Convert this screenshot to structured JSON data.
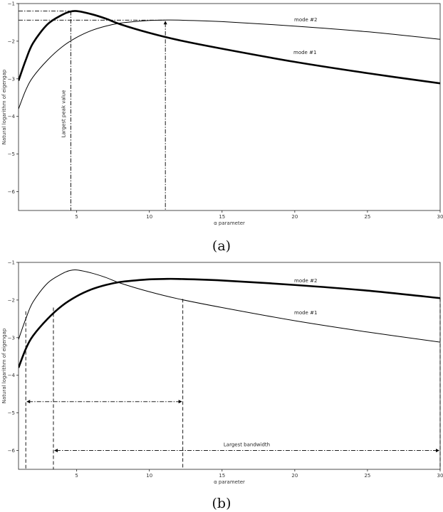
{
  "chart_data": [
    {
      "type": "line",
      "panel_caption": "(a)",
      "xlabel": "α parameter",
      "ylabel": "Natural logarithm of eigengap",
      "xlim": [
        1,
        30
      ],
      "ylim": [
        -6.5,
        -1
      ],
      "xticks": [
        5,
        10,
        15,
        20,
        25,
        30
      ],
      "yticks": [
        -1,
        -2,
        -3,
        -4,
        -5,
        -6
      ],
      "ytick_labels": [
        "−1",
        "−2",
        "−3",
        "−4",
        "−5",
        "−6"
      ],
      "grid": false,
      "series": [
        {
          "name": "mode #1",
          "weight": "thick",
          "x": [
            1,
            1.5,
            2,
            3,
            4,
            4.5,
            5,
            6,
            7,
            8,
            10,
            12,
            15,
            20,
            25,
            30
          ],
          "y": [
            -3.05,
            -2.5,
            -2.05,
            -1.55,
            -1.3,
            -1.22,
            -1.2,
            -1.28,
            -1.4,
            -1.55,
            -1.78,
            -1.97,
            -2.2,
            -2.55,
            -2.85,
            -3.12
          ]
        },
        {
          "name": "mode #2",
          "weight": "thin",
          "x": [
            1,
            1.5,
            2,
            3,
            4,
            5,
            6,
            7,
            8,
            9,
            10,
            11,
            12,
            15,
            20,
            25,
            30
          ],
          "y": [
            -3.8,
            -3.3,
            -2.95,
            -2.5,
            -2.15,
            -1.9,
            -1.72,
            -1.6,
            -1.52,
            -1.48,
            -1.45,
            -1.44,
            -1.44,
            -1.48,
            -1.6,
            -1.75,
            -1.95
          ]
        }
      ],
      "annotations": [
        {
          "kind": "vline",
          "x": 4.6,
          "y_top": -1.2,
          "style": "dashdot",
          "text": "Largest peak value"
        },
        {
          "kind": "hline",
          "y": -1.2,
          "x_from": 1,
          "x_to": 4.6,
          "style": "dashdot"
        },
        {
          "kind": "vline",
          "x": 11.1,
          "y_top": -1.44,
          "style": "dashdot",
          "arrow": true
        },
        {
          "kind": "hline",
          "y": -1.44,
          "x_from": 1,
          "x_to": 11.1,
          "style": "dashdot"
        }
      ]
    },
    {
      "type": "line",
      "panel_caption": "(b)",
      "xlabel": "α parameter",
      "ylabel": "Natural logarithm of eigengap",
      "xlim": [
        1,
        30
      ],
      "ylim": [
        -6.5,
        -1
      ],
      "xticks": [
        5,
        10,
        15,
        20,
        25,
        30
      ],
      "yticks": [
        -1,
        -2,
        -3,
        -4,
        -5,
        -6
      ],
      "ytick_labels": [
        "−1",
        "−2",
        "−3",
        "−4",
        "−5",
        "−6"
      ],
      "grid": false,
      "series": [
        {
          "name": "mode #1",
          "weight": "thin",
          "x": [
            1,
            1.5,
            2,
            3,
            4,
            4.5,
            5,
            6,
            7,
            8,
            10,
            12,
            15,
            20,
            25,
            30
          ],
          "y": [
            -3.05,
            -2.5,
            -2.05,
            -1.55,
            -1.3,
            -1.22,
            -1.2,
            -1.28,
            -1.4,
            -1.55,
            -1.78,
            -1.97,
            -2.2,
            -2.55,
            -2.85,
            -3.12
          ]
        },
        {
          "name": "mode #2",
          "weight": "thick",
          "x": [
            1,
            1.5,
            2,
            3,
            4,
            5,
            6,
            7,
            8,
            9,
            10,
            11,
            12,
            15,
            20,
            25,
            30
          ],
          "y": [
            -3.8,
            -3.3,
            -2.95,
            -2.5,
            -2.15,
            -1.9,
            -1.72,
            -1.6,
            -1.52,
            -1.48,
            -1.45,
            -1.44,
            -1.44,
            -1.48,
            -1.6,
            -1.75,
            -1.95
          ]
        }
      ],
      "annotations": [
        {
          "kind": "vline",
          "x": 1.5,
          "y_top": -2.3,
          "style": "dashed"
        },
        {
          "kind": "vline",
          "x": 12.3,
          "y_top": -1.97,
          "style": "dashed"
        },
        {
          "kind": "hband",
          "y": -4.7,
          "x_from": 1.5,
          "x_to": 12.3,
          "style": "dashdot"
        },
        {
          "kind": "vline",
          "x": 3.4,
          "y_top": -2.2,
          "style": "dashed"
        },
        {
          "kind": "vline",
          "x": 30,
          "y_top": -1.95,
          "style": "dashed"
        },
        {
          "kind": "hband",
          "y": -6.0,
          "x_from": 3.4,
          "x_to": 30,
          "style": "dashdot",
          "text": "Largest bandwidth"
        }
      ]
    }
  ]
}
